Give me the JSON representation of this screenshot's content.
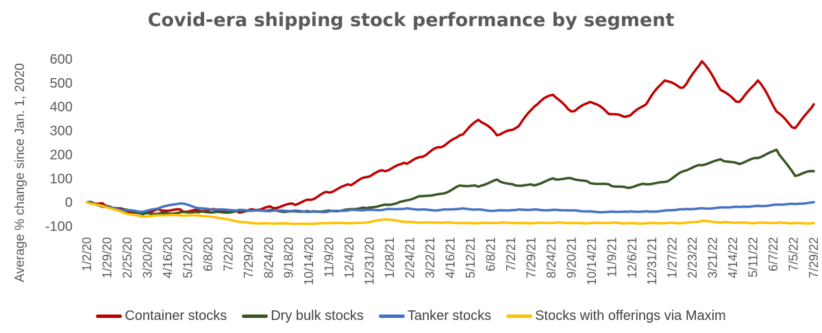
{
  "chart_data": {
    "type": "line",
    "title": "Covid-era shipping stock performance by segment",
    "ylabel": "Average % change since Jan. 1, 2020",
    "xlabel": "",
    "ylim": [
      -100,
      600
    ],
    "yticks": [
      -100,
      0,
      100,
      200,
      300,
      400,
      500,
      600
    ],
    "grid": false,
    "legend_position": "bottom",
    "x_tick_labels": [
      "1/2/20",
      "1/29/20",
      "2/25/20",
      "3/20/20",
      "4/16/20",
      "5/12/20",
      "6/8/20",
      "7/2/20",
      "7/29/20",
      "8/24/20",
      "9/18/20",
      "10/14/20",
      "11/9/20",
      "12/4/20",
      "12/31/20",
      "1/28/21",
      "2/24/21",
      "3/22/21",
      "4/16/21",
      "5/12/21",
      "6/8/21",
      "7/2/21",
      "7/29/21",
      "8/24/21",
      "9/20/21",
      "10/14/21",
      "11/9/21",
      "12/6/21",
      "12/31/21",
      "1/27/22",
      "2/23/22",
      "3/21/22",
      "4/14/22",
      "5/11/22",
      "6/7/22",
      "7/5/22",
      "7/29/22"
    ],
    "series": [
      {
        "name": "Container stocks",
        "color": "#c00000",
        "values": [
          0,
          -15,
          -30,
          -45,
          -35,
          -30,
          -35,
          -38,
          -35,
          -32,
          -25,
          -5,
          10,
          40,
          75,
          105,
          130,
          165,
          190,
          230,
          280,
          345,
          280,
          310,
          400,
          450,
          380,
          420,
          370,
          360,
          410,
          510,
          480,
          590,
          470,
          420,
          510,
          380,
          310,
          410
        ]
      },
      {
        "name": "Dry bulk stocks",
        "color": "#375623",
        "values": [
          0,
          -15,
          -30,
          -50,
          -45,
          -42,
          -42,
          -40,
          -38,
          -35,
          -32,
          -38,
          -40,
          -35,
          -30,
          -25,
          -10,
          5,
          25,
          35,
          70,
          65,
          95,
          70,
          70,
          100,
          100,
          80,
          75,
          60,
          75,
          85,
          130,
          155,
          180,
          160,
          185,
          220,
          110,
          130
        ]
      },
      {
        "name": "Tanker stocks",
        "color": "#4472c4",
        "values": [
          0,
          -20,
          -35,
          -40,
          -20,
          -5,
          -25,
          -30,
          -35,
          -35,
          -35,
          -37,
          -40,
          -38,
          -35,
          -32,
          -30,
          -28,
          -30,
          -32,
          -28,
          -30,
          -35,
          -33,
          -30,
          -32,
          -35,
          -38,
          -40,
          -40,
          -38,
          -35,
          -30,
          -25,
          -22,
          -20,
          -15,
          -10,
          -8,
          0
        ]
      },
      {
        "name": "Stocks with offerings via Maxim",
        "color": "#ffc000",
        "values": [
          0,
          -20,
          -45,
          -60,
          -55,
          -55,
          -55,
          -65,
          -80,
          -88,
          -90,
          -90,
          -90,
          -88,
          -88,
          -85,
          -72,
          -82,
          -85,
          -86,
          -87,
          -87,
          -87,
          -87,
          -87,
          -87,
          -87,
          -87,
          -87,
          -88,
          -88,
          -88,
          -87,
          -78,
          -85,
          -85,
          -86,
          -87,
          -87,
          -87
        ]
      }
    ]
  }
}
